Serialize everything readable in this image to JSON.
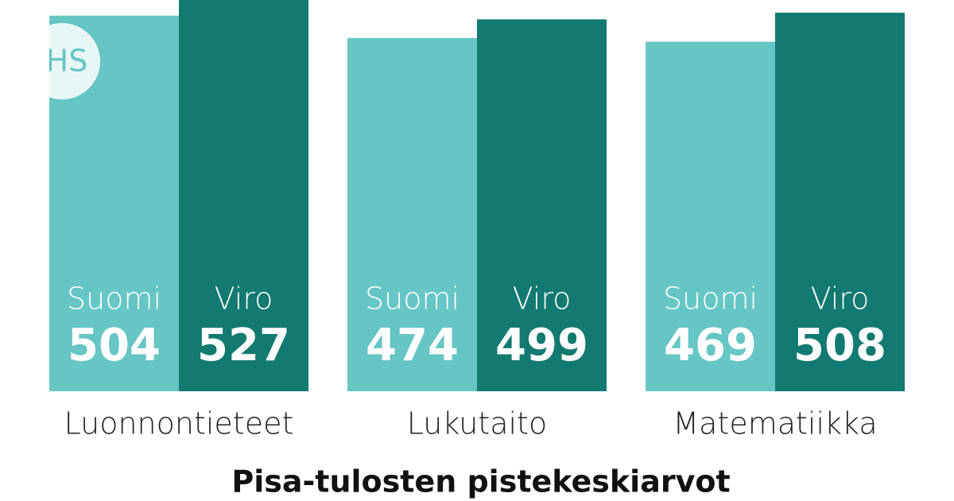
{
  "logo": "HS",
  "chart_data": {
    "type": "bar",
    "title": "Pisa-tulosten pistekeskiarvot",
    "categories": [
      "Luonnontieteet",
      "Lukutaito",
      "Matematiikka"
    ],
    "series": [
      {
        "name": "Suomi",
        "color": "#66c6c4",
        "values": [
          504,
          474,
          469
        ]
      },
      {
        "name": "Viro",
        "color": "#127a70",
        "values": [
          527,
          499,
          508
        ]
      }
    ],
    "ylim": [
      0,
      525
    ]
  }
}
